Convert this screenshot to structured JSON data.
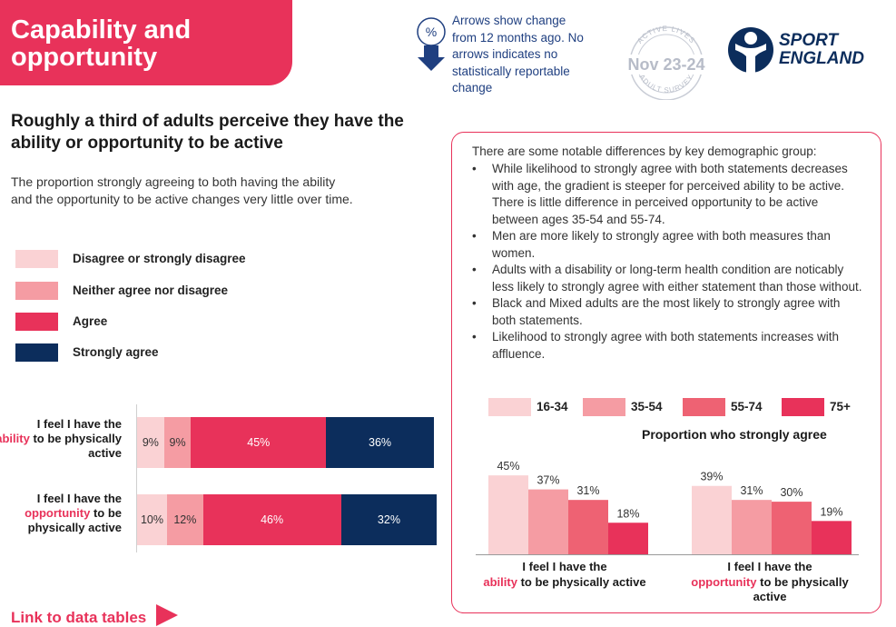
{
  "header": {
    "title": "Capability and opportunity",
    "arrow_note": "Arrows show change from 12 months ago. No arrows indicates no statistically reportable change",
    "pct_icon": "%",
    "badge_text": "Nov 23-24",
    "badge_ring_top": "ACTIVE LIVES",
    "badge_ring_bottom": "ADULT SURVEY",
    "brand_line1": "SPORT",
    "brand_line2": "ENGLAND"
  },
  "subtitle": "Roughly a third of adults perceive they have the ability or opportunity to be active",
  "intro": "The proportion strongly agreeing to both having the ability and the opportunity to be active changes very little over time.",
  "legend": [
    {
      "label": "Disagree or strongly disagree",
      "color": "#fad2d4"
    },
    {
      "label": "Neither agree nor disagree",
      "color": "#f59ca3"
    },
    {
      "label": "Agree",
      "color": "#e8325a"
    },
    {
      "label": "Strongly agree",
      "color": "#0c2d5c"
    }
  ],
  "chart_data": [
    {
      "type": "bar",
      "orientation": "horizontal-stacked",
      "categories": [
        "I feel I have the ability to be physically active",
        "I feel I have the opportunity to be physically active"
      ],
      "category_parts": [
        {
          "pre": "I feel I have the",
          "highlight": "ability",
          "post": "to be physically active"
        },
        {
          "pre": "I feel I have the",
          "highlight": "opportunity",
          "post": "to be physically active"
        }
      ],
      "series": [
        {
          "name": "Disagree or strongly disagree",
          "values": [
            9,
            10
          ],
          "labels": [
            "9%",
            "10%"
          ]
        },
        {
          "name": "Neither agree nor disagree",
          "values": [
            9,
            12
          ],
          "labels": [
            "9%",
            "12%"
          ]
        },
        {
          "name": "Agree",
          "values": [
            45,
            46
          ],
          "labels": [
            "45%",
            "46%"
          ]
        },
        {
          "name": "Strongly agree",
          "values": [
            36,
            32
          ],
          "labels": [
            "36%",
            "32%"
          ]
        }
      ],
      "xlim": [
        0,
        99
      ]
    },
    {
      "type": "bar",
      "title": "Proportion who strongly agree",
      "categories": [
        "I feel I have the ability to be physically active",
        "I feel I have the opportunity to be physically active"
      ],
      "category_parts": [
        {
          "pre": "I feel I have the",
          "highlight": "ability",
          "post": "to be physically active"
        },
        {
          "pre": "I feel I have the",
          "highlight": "opportunity",
          "post": "to be physically active"
        }
      ],
      "series": [
        {
          "name": "16-34",
          "color": "#fad2d4",
          "values": [
            45,
            39
          ],
          "labels": [
            "45%",
            "39%"
          ]
        },
        {
          "name": "35-54",
          "color": "#f59ca3",
          "values": [
            37,
            31
          ],
          "labels": [
            "37%",
            "31%"
          ]
        },
        {
          "name": "55-74",
          "color": "#ee6273",
          "values": [
            31,
            30
          ],
          "labels": [
            "31%",
            "30%"
          ]
        },
        {
          "name": "75+",
          "color": "#e8325a",
          "values": [
            18,
            19
          ],
          "labels": [
            "18%",
            "19%"
          ]
        }
      ],
      "ylim": [
        0,
        50
      ]
    }
  ],
  "notes": {
    "intro": "There are some notable differences by key demographic group:",
    "items": [
      "While likelihood to strongly agree with both statements decreases with age, the gradient is steeper for perceived ability to be active. There is little difference in perceived opportunity to be active between ages 35-54 and 55-74.",
      "Men are more likely to strongly agree with both measures than women.",
      "Adults with a disability or long-term health condition are noticably less likely to strongly agree with either statement than those without.",
      "Black and Mixed adults are the most likely to strongly agree with both statements.",
      "Likelihood to strongly agree with both statements increases with affluence."
    ]
  },
  "link_text": "Link to data tables"
}
